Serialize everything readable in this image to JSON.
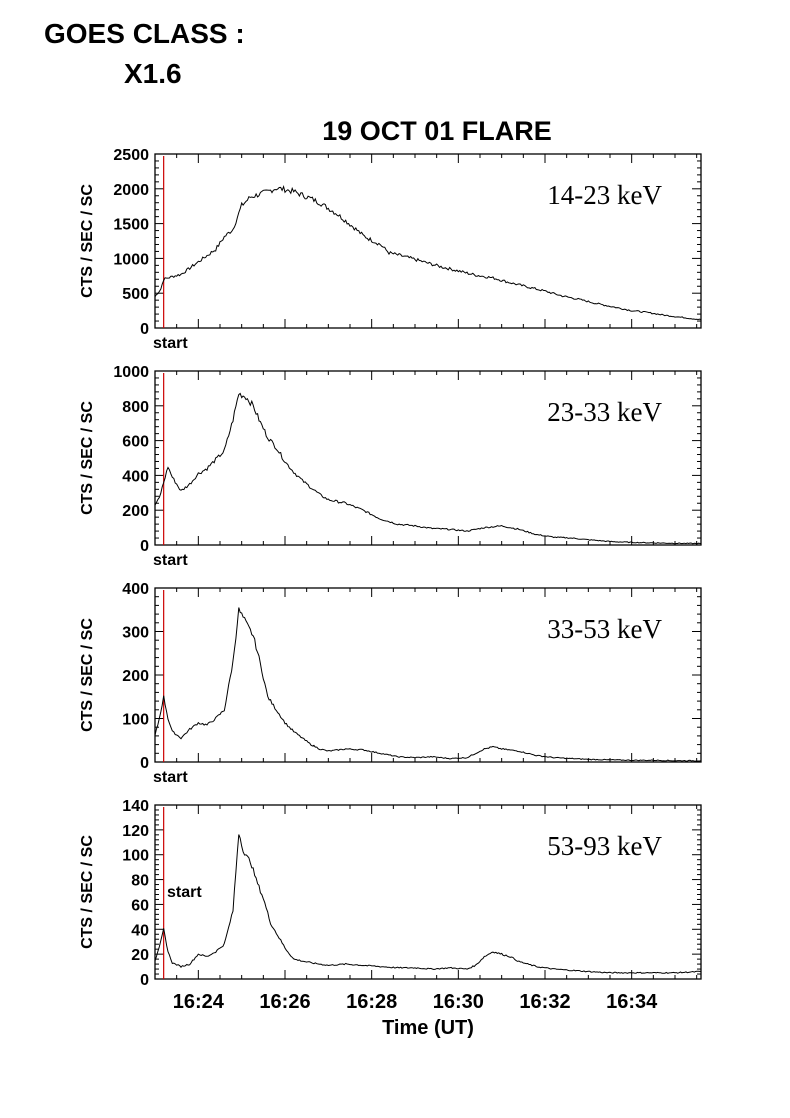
{
  "goes": {
    "label": "GOES CLASS :",
    "class": "X1.6"
  },
  "chart_data": {
    "type": "line",
    "title": "19 OCT 01 FLARE",
    "xlabel": "Time (UT)",
    "x_ticks": [
      "16:24",
      "16:26",
      "16:28",
      "16:30",
      "16:32",
      "16:34"
    ],
    "x_range": [
      "16:23:00",
      "16:35:36"
    ],
    "start_marker": {
      "time": "16:23:12",
      "label": "start",
      "color": "#cc0000"
    },
    "panels": [
      {
        "band": "14-23 keV",
        "ylabel": "CTS / SEC / SC",
        "ylim": [
          0,
          2500
        ],
        "yticks": [
          "0",
          "500",
          "1000",
          "1500",
          "2000",
          "2500"
        ],
        "points": [
          [
            "16:23:00",
            450
          ],
          [
            "16:23:08",
            560
          ],
          [
            "16:23:12",
            700
          ],
          [
            "16:23:24",
            740
          ],
          [
            "16:23:36",
            770
          ],
          [
            "16:23:48",
            860
          ],
          [
            "16:24:00",
            950
          ],
          [
            "16:24:12",
            1040
          ],
          [
            "16:24:24",
            1130
          ],
          [
            "16:24:36",
            1310
          ],
          [
            "16:24:48",
            1420
          ],
          [
            "16:25:00",
            1760
          ],
          [
            "16:25:12",
            1880
          ],
          [
            "16:25:24",
            1920
          ],
          [
            "16:25:36",
            1960
          ],
          [
            "16:25:48",
            2010
          ],
          [
            "16:26:00",
            1990
          ],
          [
            "16:26:12",
            1960
          ],
          [
            "16:26:24",
            1910
          ],
          [
            "16:26:36",
            1860
          ],
          [
            "16:26:48",
            1800
          ],
          [
            "16:27:00",
            1720
          ],
          [
            "16:27:12",
            1640
          ],
          [
            "16:27:24",
            1540
          ],
          [
            "16:27:36",
            1440
          ],
          [
            "16:27:48",
            1330
          ],
          [
            "16:28:00",
            1260
          ],
          [
            "16:28:12",
            1200
          ],
          [
            "16:28:24",
            1080
          ],
          [
            "16:28:48",
            1020
          ],
          [
            "16:29:12",
            950
          ],
          [
            "16:29:36",
            880
          ],
          [
            "16:30:00",
            820
          ],
          [
            "16:30:24",
            760
          ],
          [
            "16:30:48",
            720
          ],
          [
            "16:31:12",
            650
          ],
          [
            "16:31:36",
            590
          ],
          [
            "16:32:00",
            530
          ],
          [
            "16:32:24",
            460
          ],
          [
            "16:32:48",
            410
          ],
          [
            "16:33:12",
            350
          ],
          [
            "16:33:36",
            300
          ],
          [
            "16:34:00",
            250
          ],
          [
            "16:34:24",
            220
          ],
          [
            "16:34:48",
            180
          ],
          [
            "16:35:12",
            150
          ],
          [
            "16:35:36",
            120
          ]
        ]
      },
      {
        "band": "23-33 keV",
        "ylabel": "CTS / SEC / SC",
        "ylim": [
          0,
          1000
        ],
        "yticks": [
          "0",
          "200",
          "400",
          "600",
          "800",
          "1000"
        ],
        "points": [
          [
            "16:23:00",
            230
          ],
          [
            "16:23:06",
            270
          ],
          [
            "16:23:12",
            360
          ],
          [
            "16:23:18",
            450
          ],
          [
            "16:23:24",
            390
          ],
          [
            "16:23:36",
            310
          ],
          [
            "16:23:48",
            350
          ],
          [
            "16:24:00",
            410
          ],
          [
            "16:24:12",
            440
          ],
          [
            "16:24:24",
            490
          ],
          [
            "16:24:36",
            540
          ],
          [
            "16:24:48",
            720
          ],
          [
            "16:24:56",
            870
          ],
          [
            "16:25:06",
            850
          ],
          [
            "16:25:16",
            800
          ],
          [
            "16:25:24",
            720
          ],
          [
            "16:25:36",
            620
          ],
          [
            "16:25:48",
            560
          ],
          [
            "16:26:00",
            480
          ],
          [
            "16:26:12",
            420
          ],
          [
            "16:26:24",
            370
          ],
          [
            "16:26:36",
            330
          ],
          [
            "16:26:48",
            290
          ],
          [
            "16:27:00",
            260
          ],
          [
            "16:27:24",
            240
          ],
          [
            "16:27:48",
            200
          ],
          [
            "16:28:12",
            150
          ],
          [
            "16:28:36",
            120
          ],
          [
            "16:29:00",
            110
          ],
          [
            "16:29:24",
            95
          ],
          [
            "16:29:48",
            90
          ],
          [
            "16:30:12",
            80
          ],
          [
            "16:30:36",
            100
          ],
          [
            "16:31:00",
            110
          ],
          [
            "16:31:24",
            90
          ],
          [
            "16:31:48",
            60
          ],
          [
            "16:32:12",
            45
          ],
          [
            "16:32:36",
            40
          ],
          [
            "16:33:00",
            30
          ],
          [
            "16:33:30",
            20
          ],
          [
            "16:34:00",
            15
          ],
          [
            "16:34:30",
            12
          ],
          [
            "16:35:00",
            10
          ],
          [
            "16:35:36",
            8
          ]
        ]
      },
      {
        "band": "33-53 keV",
        "ylabel": "CTS / SEC / SC",
        "ylim": [
          0,
          400
        ],
        "yticks": [
          "0",
          "100",
          "200",
          "300",
          "400"
        ],
        "points": [
          [
            "16:23:00",
            60
          ],
          [
            "16:23:06",
            100
          ],
          [
            "16:23:12",
            150
          ],
          [
            "16:23:18",
            100
          ],
          [
            "16:23:24",
            70
          ],
          [
            "16:23:36",
            55
          ],
          [
            "16:23:48",
            75
          ],
          [
            "16:24:00",
            90
          ],
          [
            "16:24:12",
            85
          ],
          [
            "16:24:24",
            100
          ],
          [
            "16:24:36",
            120
          ],
          [
            "16:24:48",
            230
          ],
          [
            "16:24:56",
            350
          ],
          [
            "16:25:06",
            320
          ],
          [
            "16:25:16",
            290
          ],
          [
            "16:25:24",
            240
          ],
          [
            "16:25:36",
            150
          ],
          [
            "16:25:48",
            120
          ],
          [
            "16:26:00",
            90
          ],
          [
            "16:26:12",
            70
          ],
          [
            "16:26:24",
            55
          ],
          [
            "16:26:36",
            40
          ],
          [
            "16:26:48",
            30
          ],
          [
            "16:27:00",
            25
          ],
          [
            "16:27:24",
            30
          ],
          [
            "16:27:48",
            28
          ],
          [
            "16:28:12",
            20
          ],
          [
            "16:28:36",
            12
          ],
          [
            "16:29:00",
            10
          ],
          [
            "16:29:24",
            12
          ],
          [
            "16:29:48",
            8
          ],
          [
            "16:30:12",
            10
          ],
          [
            "16:30:36",
            30
          ],
          [
            "16:30:48",
            35
          ],
          [
            "16:31:00",
            30
          ],
          [
            "16:31:24",
            25
          ],
          [
            "16:31:48",
            15
          ],
          [
            "16:32:12",
            10
          ],
          [
            "16:32:36",
            8
          ],
          [
            "16:33:00",
            6
          ],
          [
            "16:33:30",
            5
          ],
          [
            "16:34:00",
            4
          ],
          [
            "16:34:30",
            4
          ],
          [
            "16:35:00",
            3
          ],
          [
            "16:35:36",
            3
          ]
        ]
      },
      {
        "band": "53-93 keV",
        "ylabel": "CTS / SEC / SC",
        "ylim": [
          0,
          140
        ],
        "yticks": [
          "0",
          "20",
          "40",
          "60",
          "80",
          "100",
          "120",
          "140"
        ],
        "points": [
          [
            "16:23:00",
            15
          ],
          [
            "16:23:06",
            25
          ],
          [
            "16:23:12",
            40
          ],
          [
            "16:23:18",
            22
          ],
          [
            "16:23:24",
            13
          ],
          [
            "16:23:36",
            10
          ],
          [
            "16:23:48",
            12
          ],
          [
            "16:24:00",
            20
          ],
          [
            "16:24:12",
            18
          ],
          [
            "16:24:24",
            22
          ],
          [
            "16:24:36",
            28
          ],
          [
            "16:24:48",
            55
          ],
          [
            "16:24:56",
            118
          ],
          [
            "16:25:04",
            100
          ],
          [
            "16:25:12",
            95
          ],
          [
            "16:25:20",
            80
          ],
          [
            "16:25:30",
            65
          ],
          [
            "16:25:40",
            45
          ],
          [
            "16:25:50",
            35
          ],
          [
            "16:26:00",
            25
          ],
          [
            "16:26:12",
            16
          ],
          [
            "16:26:36",
            13
          ],
          [
            "16:27:00",
            11
          ],
          [
            "16:27:24",
            12
          ],
          [
            "16:27:48",
            11
          ],
          [
            "16:28:12",
            10
          ],
          [
            "16:28:36",
            9
          ],
          [
            "16:29:00",
            9
          ],
          [
            "16:29:24",
            8
          ],
          [
            "16:29:48",
            9
          ],
          [
            "16:30:12",
            8
          ],
          [
            "16:30:24",
            11
          ],
          [
            "16:30:36",
            18
          ],
          [
            "16:30:48",
            22
          ],
          [
            "16:31:00",
            20
          ],
          [
            "16:31:12",
            18
          ],
          [
            "16:31:24",
            14
          ],
          [
            "16:31:48",
            10
          ],
          [
            "16:32:12",
            8
          ],
          [
            "16:32:36",
            7
          ],
          [
            "16:33:00",
            6
          ],
          [
            "16:33:30",
            5
          ],
          [
            "16:34:00",
            5
          ],
          [
            "16:34:30",
            5
          ],
          [
            "16:35:00",
            5
          ],
          [
            "16:35:36",
            6
          ]
        ]
      }
    ]
  }
}
